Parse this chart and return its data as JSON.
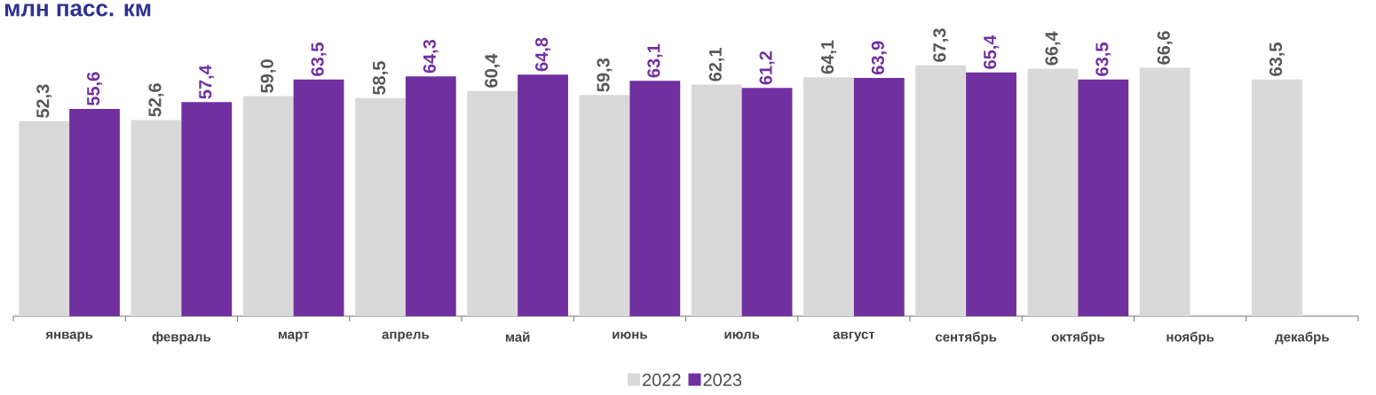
{
  "chart_data": {
    "type": "bar",
    "title": "млн пасс. км",
    "categories": [
      "январь",
      "февраль",
      "март",
      "апрель",
      "май",
      "июнь",
      "июль",
      "август",
      "сентябрь",
      "октябрь",
      "ноябрь",
      "декабрь"
    ],
    "series": [
      {
        "name": "2022",
        "color": "#d9d9d9",
        "values": [
          52.3,
          52.6,
          59.0,
          58.5,
          60.4,
          59.3,
          62.1,
          64.1,
          67.3,
          66.4,
          66.6,
          63.5
        ],
        "value_labels": [
          "52,3",
          "52,6",
          "59,0",
          "58,5",
          "60,4",
          "59,3",
          "62,1",
          "64,1",
          "67,3",
          "66,4",
          "66,6",
          "63,5"
        ]
      },
      {
        "name": "2023",
        "color": "#7030a0",
        "values": [
          55.6,
          57.4,
          63.5,
          64.3,
          64.8,
          63.1,
          61.2,
          63.9,
          65.4,
          63.5,
          null,
          null
        ],
        "value_labels": [
          "55,6",
          "57,4",
          "63,5",
          "64,3",
          "64,8",
          "63,1",
          "61,2",
          "63,9",
          "65,4",
          "63,5",
          null,
          null
        ]
      }
    ],
    "legend": "bottom"
  }
}
